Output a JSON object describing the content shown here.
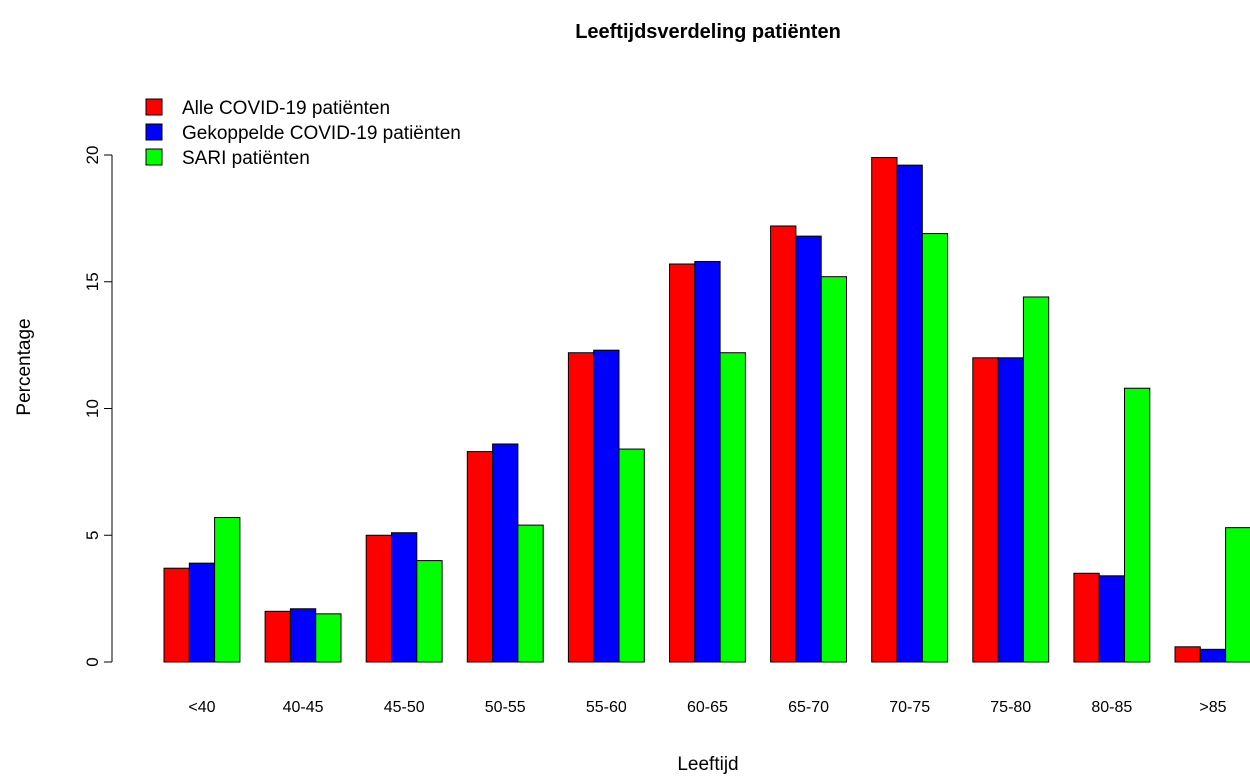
{
  "chart_data": {
    "type": "bar",
    "title": "Leeftijdsverdeling patiënten",
    "xlabel": "Leeftijd",
    "ylabel": "Percentage",
    "categories": [
      "<40",
      "40-45",
      "45-50",
      "50-55",
      "55-60",
      "60-65",
      "65-70",
      "70-75",
      "75-80",
      "80-85",
      ">85"
    ],
    "series": [
      {
        "name": "Alle COVID-19 patiënten",
        "color": "#ff0000",
        "values": [
          3.7,
          2.0,
          5.0,
          8.3,
          12.2,
          15.7,
          17.2,
          19.9,
          12.0,
          3.5,
          0.6
        ]
      },
      {
        "name": "Gekoppelde COVID-19 patiënten",
        "color": "#0000ff",
        "values": [
          3.9,
          2.1,
          5.1,
          8.6,
          12.3,
          15.8,
          16.8,
          19.6,
          12.0,
          3.4,
          0.5
        ]
      },
      {
        "name": "SARI patiënten",
        "color": "#00ff00",
        "values": [
          5.7,
          1.9,
          4.0,
          5.4,
          8.4,
          12.2,
          15.2,
          16.9,
          14.4,
          10.8,
          5.3
        ]
      }
    ],
    "yticks": [
      0,
      5,
      10,
      15,
      20
    ],
    "ylim": [
      0,
      20
    ],
    "legend_position": "top-left",
    "grid": false
  }
}
